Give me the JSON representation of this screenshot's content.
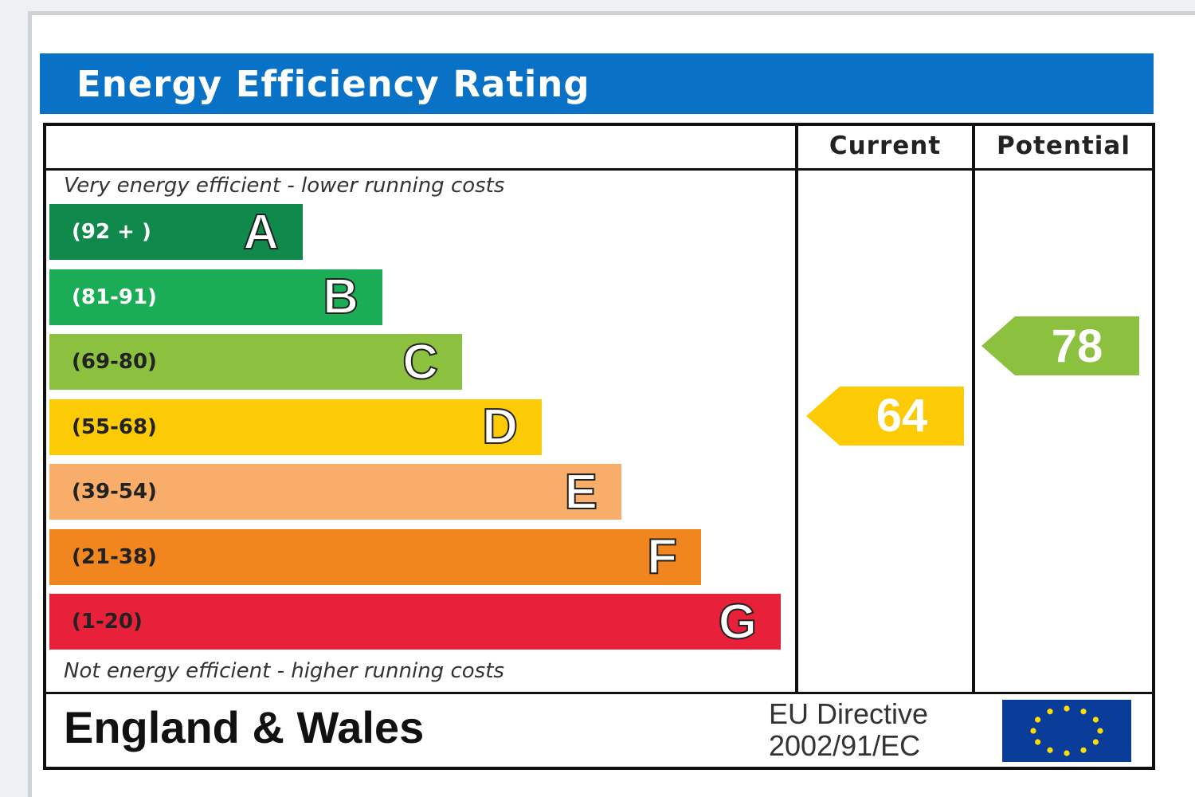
{
  "title": "Energy Efficiency Rating",
  "columns": {
    "current": "Current",
    "potential": "Potential"
  },
  "captions": {
    "top": "Very energy efficient - lower running costs",
    "bottom": "Not energy efficient - higher running costs"
  },
  "chart_data": {
    "type": "bar",
    "categories": [
      "A",
      "B",
      "C",
      "D",
      "E",
      "F",
      "G"
    ],
    "ranges": [
      "(92 + )",
      "(81-91)",
      "(69-80)",
      "(55-68)",
      "(39-54)",
      "(21-38)",
      "(1-20)"
    ],
    "colors": [
      "#0f8a4c",
      "#1aad55",
      "#8cc140",
      "#fdcb06",
      "#f8ad6a",
      "#f1861f",
      "#e8203a"
    ],
    "range_text_colors": [
      "#ffffff",
      "#ffffff",
      "#222222",
      "#222222",
      "#222222",
      "#222222",
      "#222222"
    ],
    "current": {
      "value": 64,
      "band": "D",
      "color": "#fdcb06"
    },
    "potential": {
      "value": 78,
      "band": "C",
      "color": "#8cc140"
    }
  },
  "footer": {
    "country": "England & Wales",
    "directive_line1": "EU Directive",
    "directive_line2": "2002/91/EC",
    "flag_icon": "eu-flag-icon",
    "flag_color": "#0a3d9a",
    "star_color": "#ffdd00"
  }
}
